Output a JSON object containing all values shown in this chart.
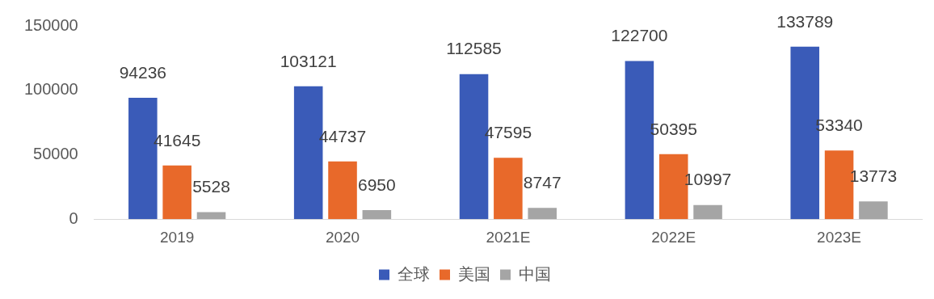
{
  "chart_data": {
    "type": "bar",
    "categories": [
      "2019",
      "2020",
      "2021E",
      "2022E",
      "2023E"
    ],
    "series": [
      {
        "name": "全球",
        "color": "#3a5bb8",
        "values": [
          94236,
          103121,
          112585,
          122700,
          133789
        ]
      },
      {
        "name": "美国",
        "color": "#e8692a",
        "values": [
          41645,
          44737,
          47595,
          50395,
          53340
        ]
      },
      {
        "name": "中国",
        "color": "#a5a5a5",
        "values": [
          5528,
          6950,
          8747,
          10997,
          13773
        ]
      }
    ],
    "ylim": [
      0,
      150000
    ],
    "yticks": [
      0,
      50000,
      100000,
      150000
    ],
    "grid": false,
    "legend": "bottom",
    "data_labels": true
  }
}
